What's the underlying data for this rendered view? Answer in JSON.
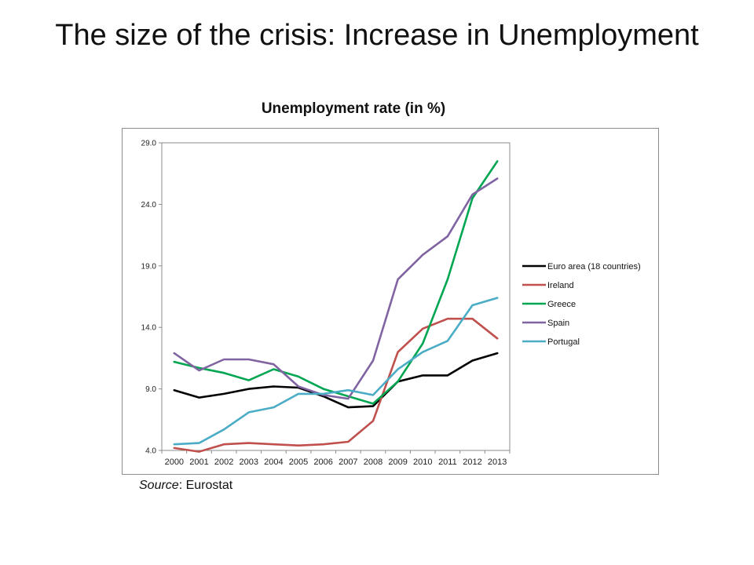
{
  "slide": {
    "title": "The size of the crisis: Increase in Unemployment"
  },
  "source": {
    "label": "Source",
    "text": ": Eurostat"
  },
  "chart_data": {
    "type": "line",
    "title": "Unemployment rate (in %)",
    "xlabel": "",
    "ylabel": "",
    "x": [
      "2000",
      "2001",
      "2002",
      "2003",
      "2004",
      "2005",
      "2006",
      "2007",
      "2008",
      "2009",
      "2010",
      "2011",
      "2012",
      "2013"
    ],
    "ylim": [
      4.0,
      29.0
    ],
    "yticks": [
      4.0,
      9.0,
      14.0,
      19.0,
      24.0,
      29.0
    ],
    "ytick_labels": [
      "4.0",
      "9.0",
      "14.0",
      "19.0",
      "24.0",
      "29.0"
    ],
    "grid": false,
    "legend_position": "right",
    "series": [
      {
        "name": "Euro area (18 countries)",
        "color": "#000000",
        "values": [
          8.9,
          8.3,
          8.6,
          9.0,
          9.2,
          9.1,
          8.4,
          7.5,
          7.6,
          9.6,
          10.1,
          10.1,
          11.3,
          11.9
        ]
      },
      {
        "name": "Ireland",
        "color": "#c0504d",
        "values": [
          4.2,
          3.9,
          4.5,
          4.6,
          4.5,
          4.4,
          4.5,
          4.7,
          6.4,
          12.0,
          13.9,
          14.7,
          14.7,
          13.1
        ]
      },
      {
        "name": "Greece",
        "color": "#00a651",
        "values": [
          11.2,
          10.7,
          10.3,
          9.7,
          10.6,
          10.0,
          9.0,
          8.4,
          7.8,
          9.6,
          12.7,
          17.9,
          24.5,
          27.5
        ]
      },
      {
        "name": "Spain",
        "color": "#8064a2",
        "values": [
          11.9,
          10.5,
          11.4,
          11.4,
          11.0,
          9.2,
          8.5,
          8.2,
          11.3,
          17.9,
          19.9,
          21.4,
          24.8,
          26.1
        ]
      },
      {
        "name": "Portugal",
        "color": "#4bacc6",
        "values": [
          4.5,
          4.6,
          5.7,
          7.1,
          7.5,
          8.6,
          8.6,
          8.9,
          8.5,
          10.6,
          12.0,
          12.9,
          15.8,
          16.4
        ]
      }
    ]
  }
}
